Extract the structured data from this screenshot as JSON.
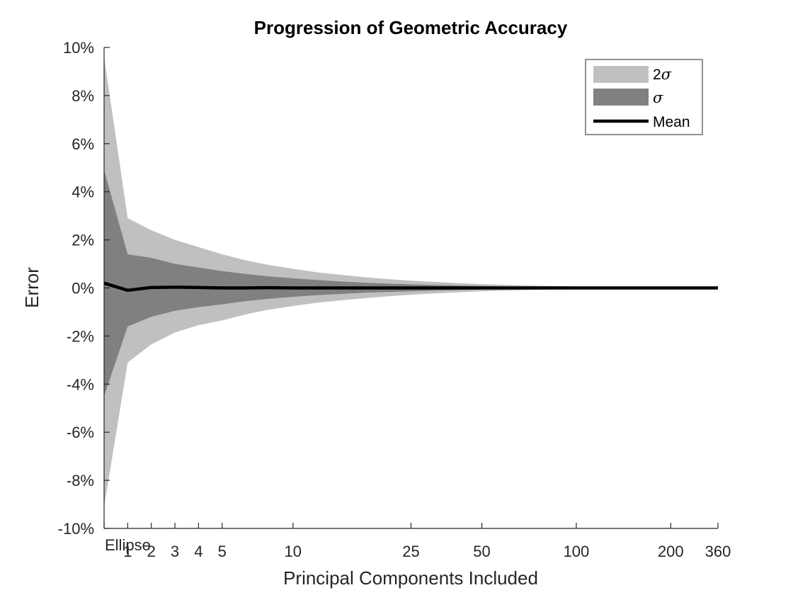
{
  "chart_data": {
    "type": "area",
    "title": "Progression of Geometric Accuracy",
    "xlabel": "Principal Components Included",
    "ylabel": "Error",
    "x_positions": [
      0,
      1,
      2,
      3,
      4,
      5,
      6,
      7,
      8,
      9,
      10,
      11,
      12,
      13,
      14,
      15,
      16,
      17,
      18,
      19,
      20,
      21,
      22,
      23,
      24,
      25,
      26
    ],
    "x_tick_labels": [
      "Ellipse",
      "1",
      "2",
      "3",
      "4",
      "5",
      "10",
      "25",
      "50",
      "100",
      "200",
      "360"
    ],
    "x_tick_positions": [
      0,
      1,
      2,
      3,
      4,
      5,
      8,
      13,
      16,
      20,
      24,
      26
    ],
    "y_tick_values": [
      -10,
      -8,
      -6,
      -4,
      -2,
      0,
      2,
      4,
      6,
      8,
      10
    ],
    "y_tick_labels": [
      "-10%",
      "-8%",
      "-6%",
      "-4%",
      "-2%",
      "0%",
      "2%",
      "4%",
      "6%",
      "8%",
      "10%"
    ],
    "ylim": [
      -10,
      10
    ],
    "xlim": [
      0,
      26
    ],
    "grid": false,
    "legend_position": "top-right",
    "series": [
      {
        "name": "2σ",
        "legend_main": "2",
        "legend_sym": "σ",
        "color": "#c0c0c0",
        "upper": [
          9.6,
          2.9,
          2.4,
          2.0,
          1.7,
          1.4,
          1.15,
          0.95,
          0.8,
          0.65,
          0.55,
          0.45,
          0.37,
          0.3,
          0.25,
          0.2,
          0.16,
          0.13,
          0.1,
          0.08,
          0.06,
          0.05,
          0.04,
          0.03,
          0.02,
          0.01,
          0.0
        ],
        "lower": [
          -9.1,
          -3.1,
          -2.35,
          -1.85,
          -1.55,
          -1.35,
          -1.1,
          -0.9,
          -0.75,
          -0.62,
          -0.52,
          -0.43,
          -0.35,
          -0.28,
          -0.23,
          -0.18,
          -0.14,
          -0.11,
          -0.09,
          -0.07,
          -0.05,
          -0.04,
          -0.03,
          -0.02,
          -0.015,
          -0.01,
          0.0
        ]
      },
      {
        "name": "σ",
        "legend_main": "",
        "legend_sym": "σ",
        "color": "#808080",
        "upper": [
          4.9,
          1.4,
          1.25,
          1.0,
          0.85,
          0.7,
          0.58,
          0.48,
          0.4,
          0.33,
          0.27,
          0.22,
          0.18,
          0.15,
          0.12,
          0.1,
          0.08,
          0.06,
          0.05,
          0.04,
          0.03,
          0.025,
          0.02,
          0.015,
          0.01,
          0.005,
          0.0
        ],
        "lower": [
          -4.5,
          -1.6,
          -1.2,
          -0.95,
          -0.8,
          -0.68,
          -0.55,
          -0.45,
          -0.37,
          -0.3,
          -0.25,
          -0.2,
          -0.17,
          -0.14,
          -0.11,
          -0.09,
          -0.07,
          -0.055,
          -0.045,
          -0.035,
          -0.027,
          -0.02,
          -0.015,
          -0.01,
          -0.007,
          -0.004,
          0.0
        ]
      },
      {
        "name": "Mean",
        "legend_main": "Mean",
        "legend_sym": "",
        "color": "#000000",
        "values": [
          0.2,
          -0.1,
          0.02,
          0.03,
          0.02,
          0.0,
          0.0,
          0.01,
          0.0,
          0.0,
          0.0,
          0.0,
          0.0,
          0.0,
          0.0,
          0.0,
          0.0,
          0.0,
          0.0,
          0.0,
          0.0,
          0.0,
          0.0,
          0.0,
          0.0,
          0.0,
          0.0
        ]
      }
    ]
  }
}
